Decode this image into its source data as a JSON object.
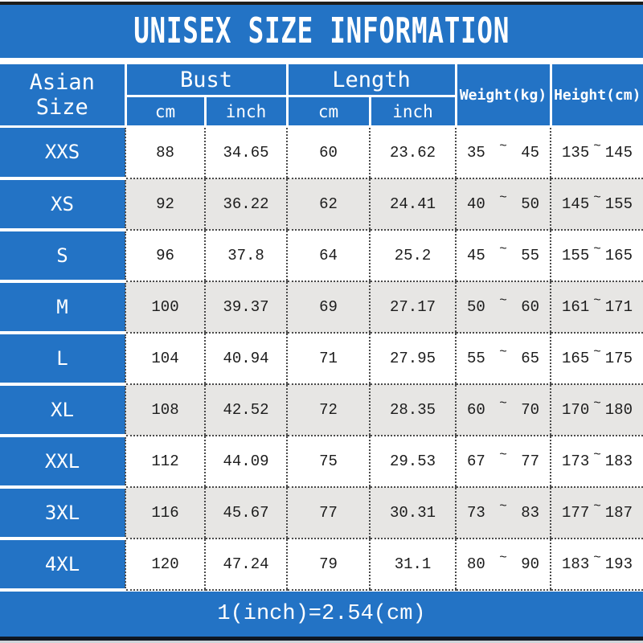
{
  "title": "UNISEX SIZE INFORMATION",
  "footer": {
    "note": "1(inch)=2.54(cm)"
  },
  "colors": {
    "blue": "#2373c5",
    "row_alt": "#e7e6e4",
    "bar_top": "#1d1d1b",
    "bar_bottom": "#0f1722",
    "header_text": "#ffffff",
    "body_text": "#1c1c1c"
  },
  "table": {
    "tilde": "~",
    "header": {
      "asian_size": "Asian Size",
      "bust": "Bust",
      "length": "Length",
      "weight": "Weight(kg)",
      "height": "Height(cm)",
      "bust_units": [
        "cm",
        "inch"
      ],
      "length_units": [
        "cm",
        "inch"
      ]
    },
    "rows": [
      {
        "size": "XXS",
        "bust_cm": "88",
        "bust_inch": "34.65",
        "length_cm": "60",
        "length_inch": "23.62",
        "weight_min": "35",
        "weight_max": "45",
        "height_min": "135",
        "height_max": "145"
      },
      {
        "size": "XS",
        "bust_cm": "92",
        "bust_inch": "36.22",
        "length_cm": "62",
        "length_inch": "24.41",
        "weight_min": "40",
        "weight_max": "50",
        "height_min": "145",
        "height_max": "155"
      },
      {
        "size": "S",
        "bust_cm": "96",
        "bust_inch": "37.8",
        "length_cm": "64",
        "length_inch": "25.2",
        "weight_min": "45",
        "weight_max": "55",
        "height_min": "155",
        "height_max": "165"
      },
      {
        "size": "M",
        "bust_cm": "100",
        "bust_inch": "39.37",
        "length_cm": "69",
        "length_inch": "27.17",
        "weight_min": "50",
        "weight_max": "60",
        "height_min": "161",
        "height_max": "171"
      },
      {
        "size": "L",
        "bust_cm": "104",
        "bust_inch": "40.94",
        "length_cm": "71",
        "length_inch": "27.95",
        "weight_min": "55",
        "weight_max": "65",
        "height_min": "165",
        "height_max": "175"
      },
      {
        "size": "XL",
        "bust_cm": "108",
        "bust_inch": "42.52",
        "length_cm": "72",
        "length_inch": "28.35",
        "weight_min": "60",
        "weight_max": "70",
        "height_min": "170",
        "height_max": "180"
      },
      {
        "size": "XXL",
        "bust_cm": "112",
        "bust_inch": "44.09",
        "length_cm": "75",
        "length_inch": "29.53",
        "weight_min": "67",
        "weight_max": "77",
        "height_min": "173",
        "height_max": "183"
      },
      {
        "size": "3XL",
        "bust_cm": "116",
        "bust_inch": "45.67",
        "length_cm": "77",
        "length_inch": "30.31",
        "weight_min": "73",
        "weight_max": "83",
        "height_min": "177",
        "height_max": "187"
      },
      {
        "size": "4XL",
        "bust_cm": "120",
        "bust_inch": "47.24",
        "length_cm": "79",
        "length_inch": "31.1",
        "weight_min": "80",
        "weight_max": "90",
        "height_min": "183",
        "height_max": "193"
      }
    ]
  }
}
